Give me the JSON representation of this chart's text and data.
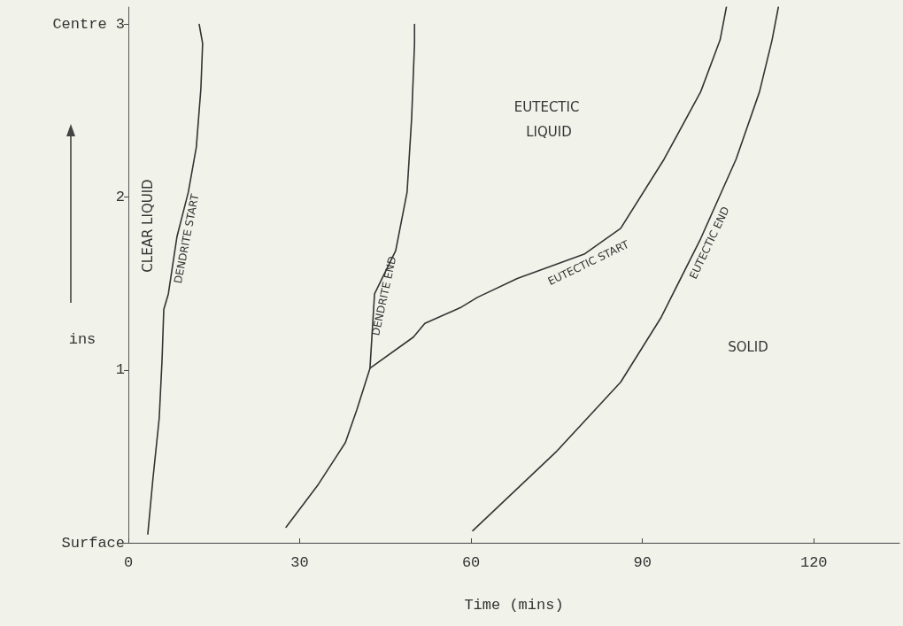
{
  "chart_data": {
    "type": "line",
    "xlabel": "Time (mins)",
    "ylabel": "ins",
    "xlim": [
      0,
      135
    ],
    "ylim": [
      0,
      3.1
    ],
    "xticks": [
      0,
      30,
      60,
      90,
      120
    ],
    "yticks": [
      {
        "value": 0,
        "label": "Surface"
      },
      1,
      2,
      {
        "value": 3,
        "label": "Centre 3"
      }
    ],
    "marker": "none",
    "line_style": "solid",
    "series": [
      {
        "name": "DENDRITE START",
        "color": "#333333",
        "x": [
          3.4,
          4.3,
          5.4,
          5.9,
          6.2,
          7.0,
          8.5,
          10.5,
          11.9,
          12.7,
          13.0,
          12.4
        ],
        "values": [
          0.05,
          0.37,
          0.72,
          1.06,
          1.35,
          1.44,
          1.77,
          2.03,
          2.29,
          2.63,
          2.89,
          3.0
        ]
      },
      {
        "name": "DENDRITE END",
        "color": "#333333",
        "x": [
          27.6,
          33.3,
          38.0,
          40.0,
          42.3,
          43.1,
          46.8,
          48.8,
          49.6,
          50.1,
          50.1
        ],
        "values": [
          0.09,
          0.34,
          0.58,
          0.77,
          1.01,
          1.44,
          1.69,
          2.03,
          2.46,
          2.89,
          3.0
        ]
      },
      {
        "name": "EUTECTIC START",
        "color": "#333333",
        "x": [
          42.3,
          49.9,
          51.9,
          58.1,
          61.1,
          68.1,
          79.8,
          86.2,
          93.8,
          100.2,
          103.6,
          104.7
        ],
        "values": [
          1.01,
          1.19,
          1.27,
          1.36,
          1.42,
          1.53,
          1.67,
          1.82,
          2.22,
          2.61,
          2.91,
          3.1
        ]
      },
      {
        "name": "EUTECTIC END",
        "color": "#333333",
        "x": [
          60.3,
          75.0,
          86.2,
          93.2,
          100.2,
          106.4,
          110.5,
          112.7,
          113.8
        ],
        "values": [
          0.07,
          0.53,
          0.93,
          1.3,
          1.76,
          2.22,
          2.61,
          2.91,
          3.1
        ]
      }
    ],
    "annotations": [
      "CLEAR LIQUID",
      "EUTECTIC LIQUID",
      "SOLID"
    ]
  }
}
